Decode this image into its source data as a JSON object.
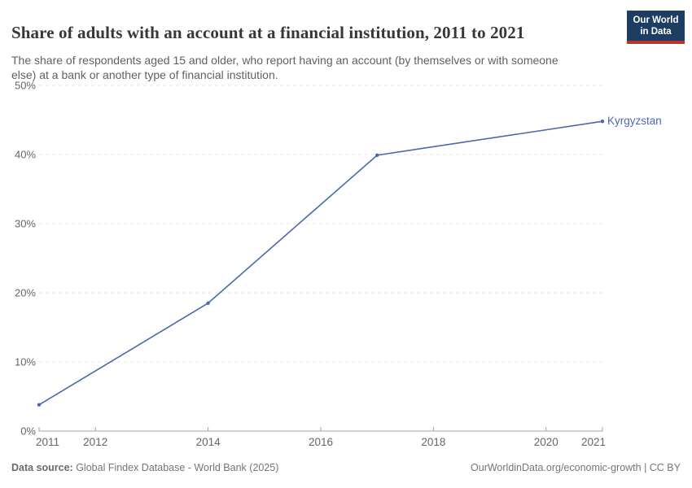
{
  "header": {
    "title": "Share of adults with an account at a financial institution, 2011 to 2021",
    "subtitle": "The share of respondents aged 15 and older, who report having an account (by themselves or with someone else) at a bank or another type of financial institution.",
    "logo": {
      "line1": "Our World",
      "line2": "in Data"
    }
  },
  "chart_data": {
    "type": "line",
    "title": "Share of adults with an account at a financial institution, 2011 to 2021",
    "series": [
      {
        "name": "Kyrgyzstan",
        "color": "#4a69ad",
        "x": [
          2011,
          2014,
          2017,
          2021
        ],
        "values": [
          3.8,
          18.5,
          39.9,
          44.8
        ]
      }
    ],
    "xlabel": "",
    "ylabel": "",
    "xlim": [
      2011,
      2021
    ],
    "ylim": [
      0,
      50
    ],
    "x_ticks": [
      2011,
      2012,
      2014,
      2016,
      2018,
      2020,
      2021
    ],
    "y_ticks": [
      0,
      10,
      20,
      30,
      40,
      50
    ],
    "y_suffix": "%",
    "grid": "horizontal-dashed",
    "legend_position": "end-of-line-label",
    "markers": true
  },
  "footer": {
    "data_source_label": "Data source:",
    "data_source_value": " Global Findex Database - World Bank (2025)",
    "link": "OurWorldinData.org/economic-growth | CC BY"
  },
  "colors": {
    "accent": "#4a69ad",
    "logo_navy": "#1d3d63",
    "logo_red": "#b5332c",
    "text_dark": "#373737",
    "text_gray": "#616161",
    "axis_text": "#666666",
    "gridline": "#e3e3e3",
    "axis_line": "#a3a3a3"
  }
}
